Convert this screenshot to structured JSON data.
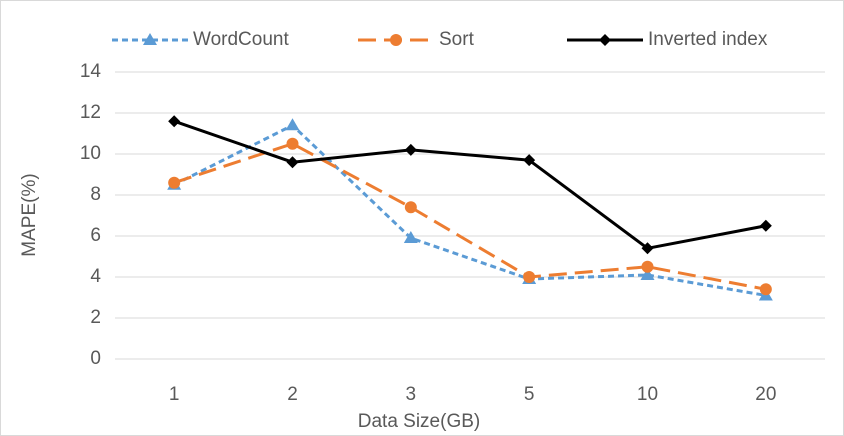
{
  "chart_data": {
    "type": "line",
    "x_label": "Data Size(GB)",
    "y_label": "MAPE(%)",
    "categories": [
      "1",
      "2",
      "3",
      "5",
      "10",
      "20"
    ],
    "series": [
      {
        "name": "WordCount",
        "color": "#5b9bd5",
        "values": [
          8.5,
          11.4,
          5.9,
          3.9,
          4.1,
          3.1
        ]
      },
      {
        "name": "Sort",
        "color": "#ed7d31",
        "values": [
          8.6,
          10.5,
          7.4,
          4.0,
          4.5,
          3.4
        ]
      },
      {
        "name": "Inverted index",
        "color": "#000000",
        "values": [
          11.6,
          9.6,
          10.2,
          9.7,
          5.4,
          6.5
        ]
      }
    ],
    "ylim": [
      0,
      14
    ],
    "yticks": [
      0,
      2,
      4,
      6,
      8,
      10,
      12,
      14
    ],
    "grid": true,
    "legend": "top"
  }
}
